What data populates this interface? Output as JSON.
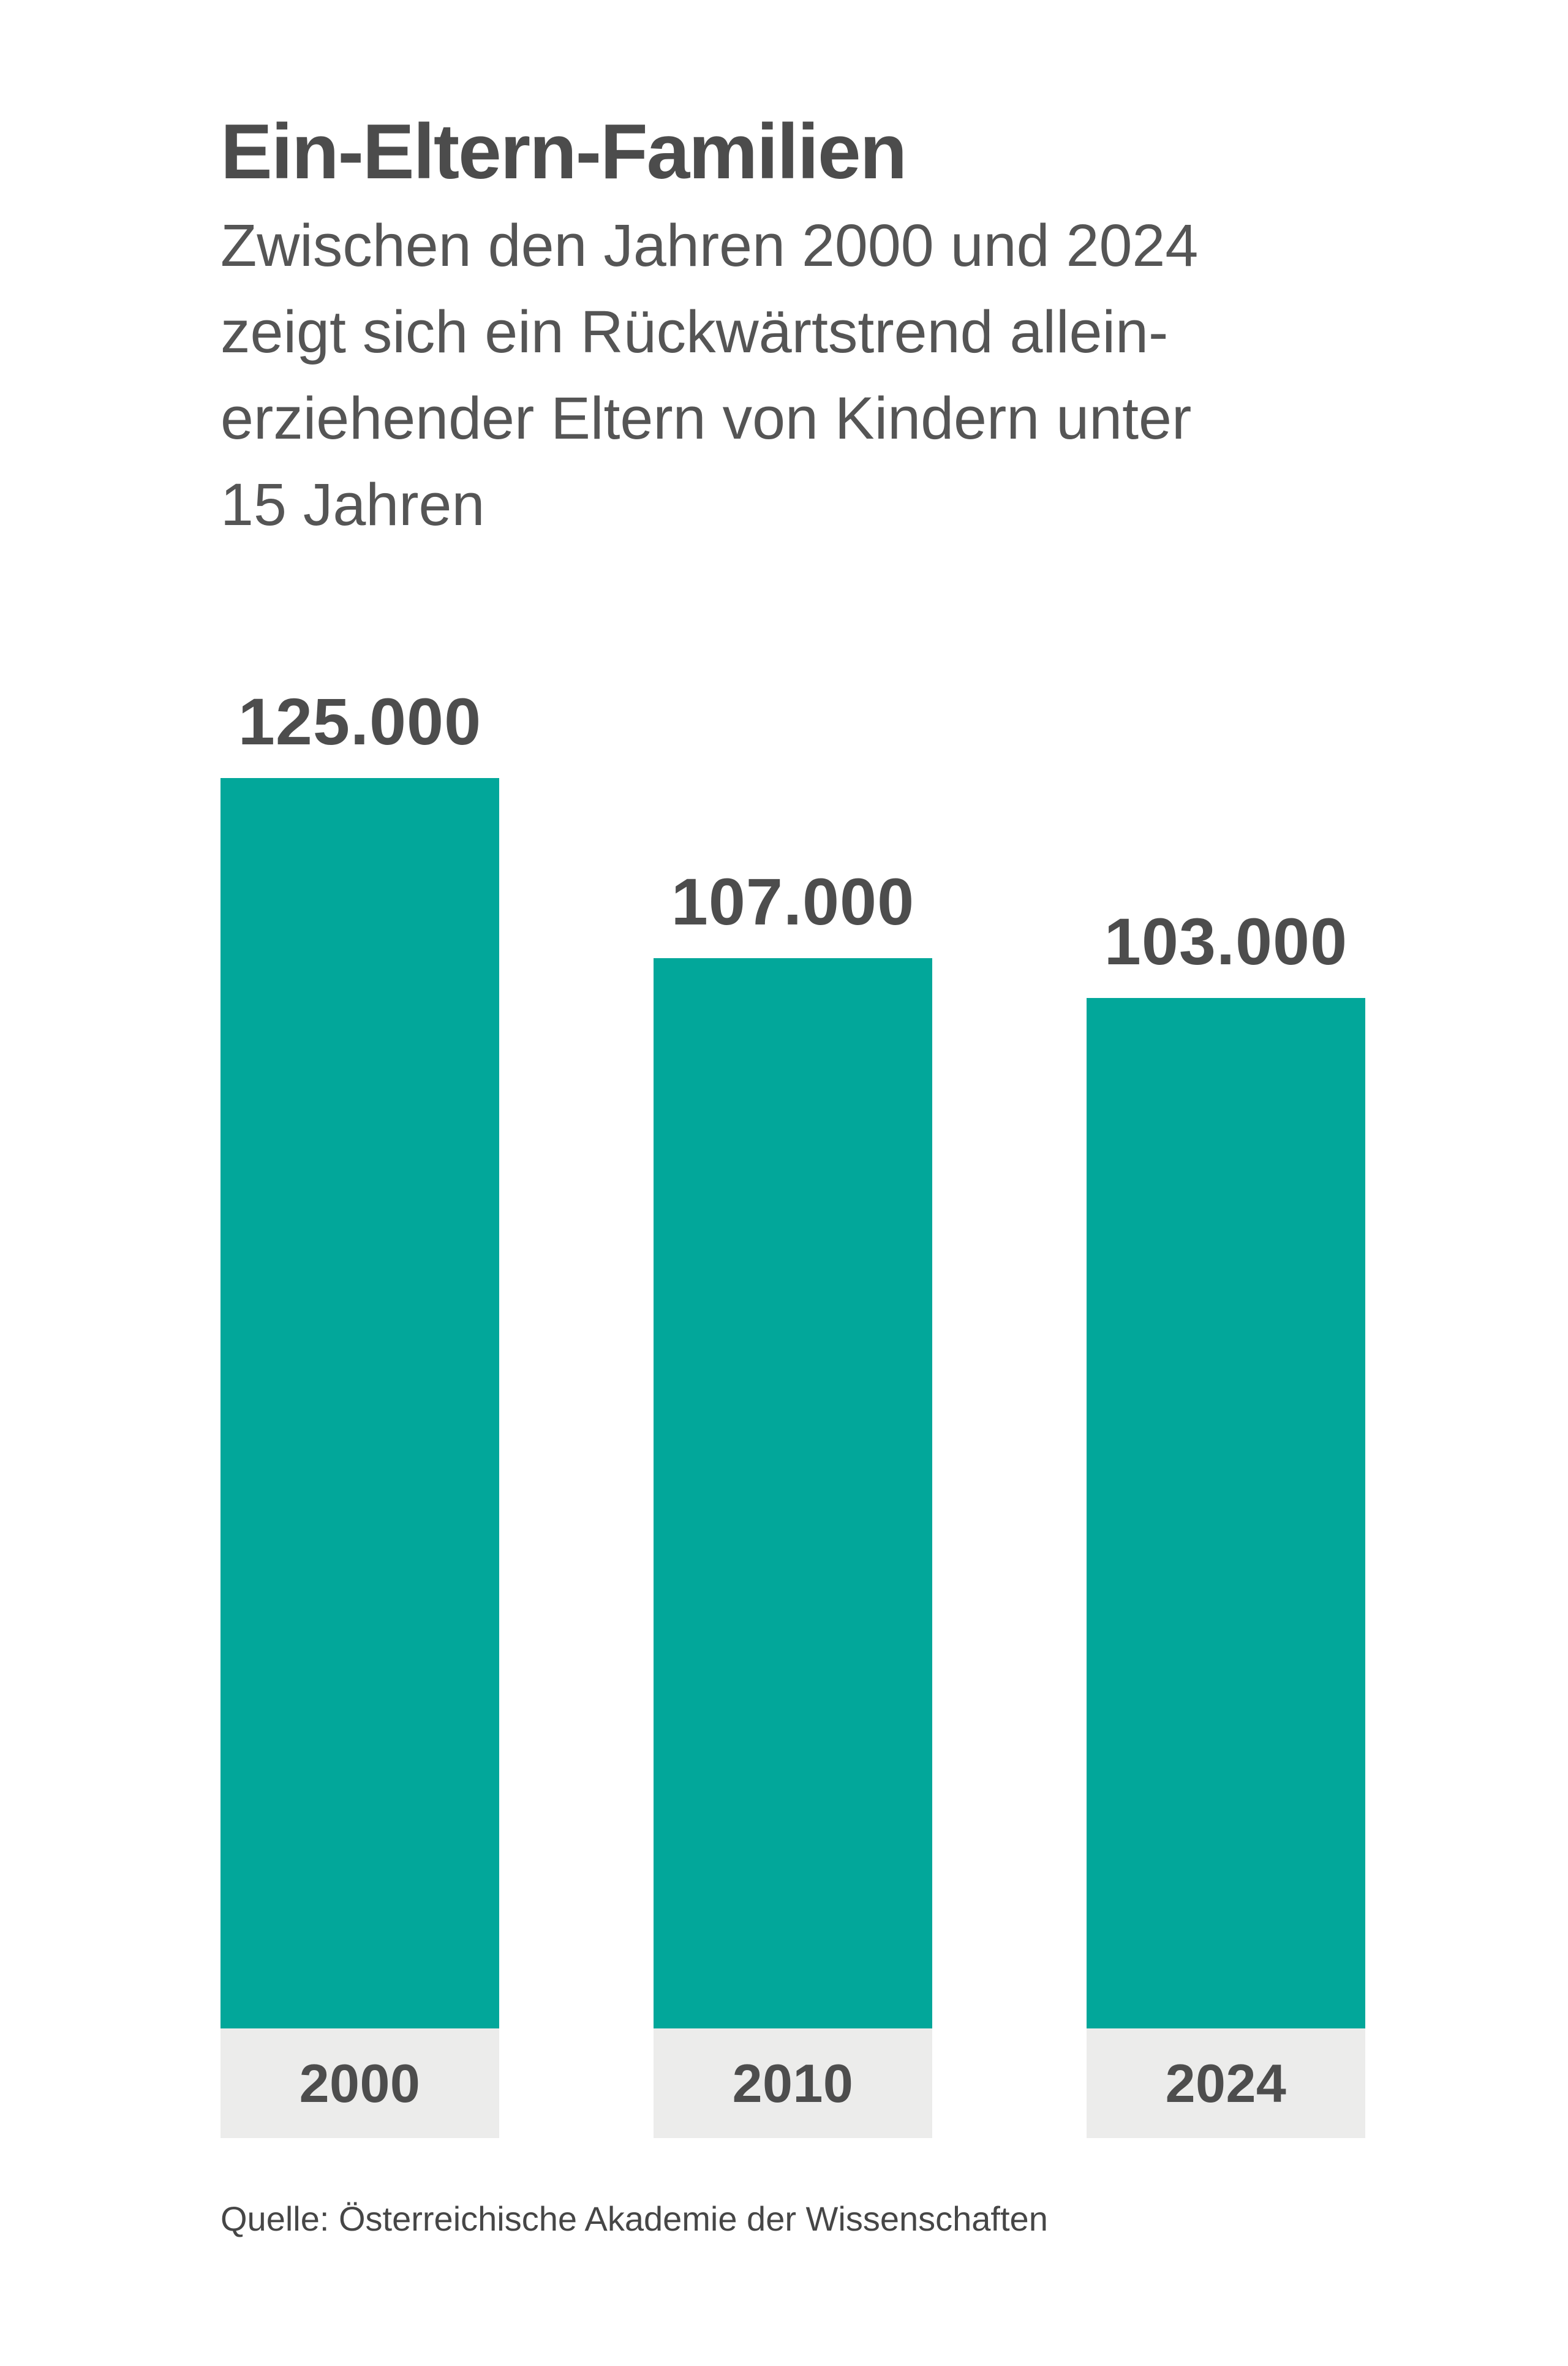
{
  "header": {
    "title": "Ein-Eltern-Familien",
    "subtitle_lines": [
      "Zwischen den Jahren 2000 und 2024",
      "zeigt sich ein Rückwärtstrend allein-",
      "erziehender Eltern von Kindern unter",
      "15 Jahren"
    ]
  },
  "source": {
    "label": "Quelle: Österreichische Akademie der Wissenschaften"
  },
  "colors": {
    "background": "#ffffff",
    "bar": "#02a79a",
    "label_band": "#ececeb",
    "title_text": "#4c4c4c",
    "subtitle_text": "#555555",
    "value_text": "#4d4d4d",
    "axis_text": "#4d4d4d",
    "source_text": "#464646"
  },
  "chart_data": {
    "type": "bar",
    "title": "Ein-Eltern-Familien",
    "subtitle": "Zwischen den Jahren 2000 und 2024 zeigt sich ein Rückwärtstrend alleinerziehender Eltern von Kindern unter 15 Jahren",
    "categories": [
      "2000",
      "2010",
      "2024"
    ],
    "values": [
      125000,
      107000,
      103000
    ],
    "value_labels": [
      "125.000",
      "107.000",
      "103.000"
    ],
    "xlabel": "",
    "ylabel": "",
    "ylim": [
      0,
      125000
    ],
    "grid": false,
    "legend": false,
    "bar_color": "#02a79a",
    "source": "Quelle: Österreichische Akademie der Wissenschaften"
  }
}
